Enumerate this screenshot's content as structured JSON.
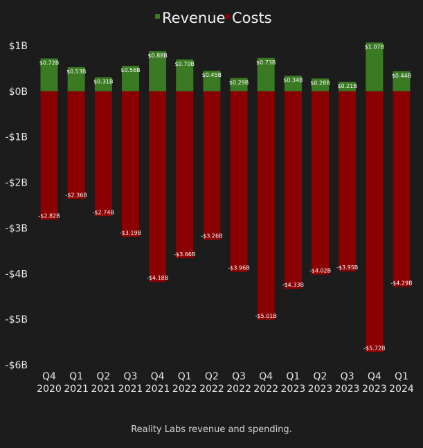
{
  "caption": "Reality Labs revenue and spending.",
  "chart_data": {
    "type": "bar",
    "stacked": true,
    "title": "",
    "xlabel": "",
    "ylabel": "",
    "ylim": [
      -6,
      1
    ],
    "yticks": [
      1,
      0,
      -1,
      -2,
      -3,
      -4,
      -5,
      -6
    ],
    "ytick_labels": [
      "$1B",
      "$0B",
      "-$1B",
      "-$2B",
      "-$3B",
      "-$4B",
      "-$5B",
      "-$6B"
    ],
    "legend_position": "top-center",
    "categories": [
      [
        "Q4",
        "2020"
      ],
      [
        "Q1",
        "2021"
      ],
      [
        "Q2",
        "2021"
      ],
      [
        "Q3",
        "2021"
      ],
      [
        "Q4",
        "2021"
      ],
      [
        "Q1",
        "2022"
      ],
      [
        "Q2",
        "2022"
      ],
      [
        "Q3",
        "2022"
      ],
      [
        "Q4",
        "2022"
      ],
      [
        "Q1",
        "2023"
      ],
      [
        "Q2",
        "2023"
      ],
      [
        "Q3",
        "2023"
      ],
      [
        "Q4",
        "2023"
      ],
      [
        "Q1",
        "2024"
      ]
    ],
    "series": [
      {
        "name": "Revenue",
        "color": "#3a7a22",
        "marker": "■",
        "values": [
          0.72,
          0.53,
          0.31,
          0.56,
          0.88,
          0.7,
          0.45,
          0.29,
          0.73,
          0.34,
          0.28,
          0.21,
          1.07,
          0.44
        ],
        "labels": [
          "$0.72B",
          "$0.53B",
          "$0.31B",
          "$0.56B",
          "$0.88B",
          "$0.70B",
          "$0.45B",
          "$0.29B",
          "$0.73B",
          "$0.34B",
          "$0.28B",
          "$0.21B",
          "$1.07B",
          "$0.44B"
        ]
      },
      {
        "name": "Costs",
        "color": "#8b0000",
        "marker": "■",
        "values": [
          -2.82,
          -2.36,
          -2.74,
          -3.19,
          -4.18,
          -3.66,
          -3.26,
          -3.96,
          -5.01,
          -4.33,
          -4.02,
          -3.95,
          -5.72,
          -4.29
        ],
        "labels": [
          "-$2.82B",
          "-$2.36B",
          "-$2.74B",
          "-$3.19B",
          "-$4.18B",
          "-$3.66B",
          "-$3.26B",
          "-$3.96B",
          "-$5.01B",
          "-$4.33B",
          "-$4.02B",
          "-$3.95B",
          "-$5.72B",
          "-$4.29B"
        ]
      }
    ]
  }
}
